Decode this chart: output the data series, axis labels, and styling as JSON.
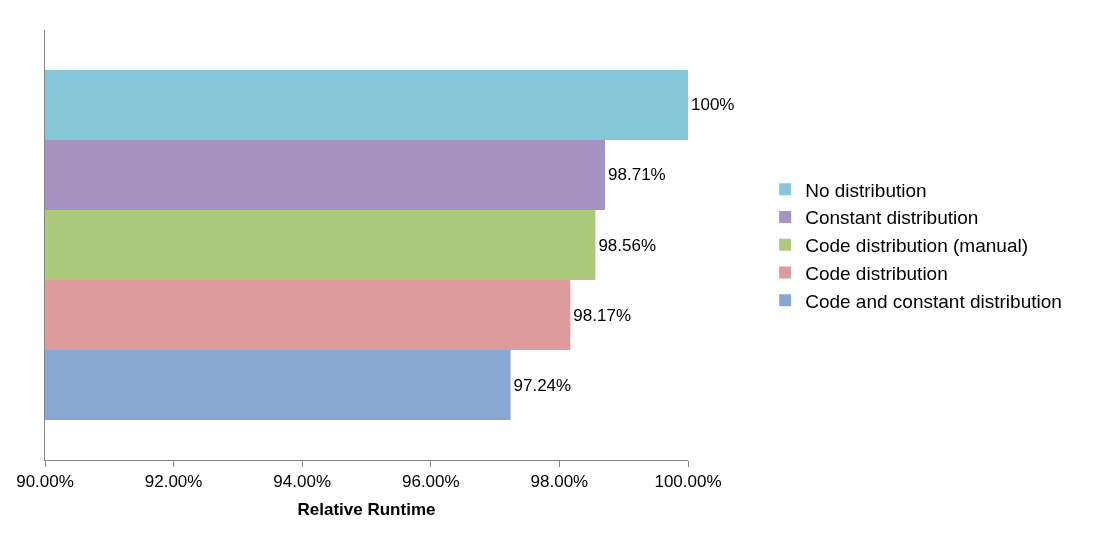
{
  "chart_data": {
    "type": "bar",
    "orientation": "horizontal",
    "categories": [
      null
    ],
    "series": [
      {
        "name": "No distribution",
        "color": "#86c6d9",
        "values": [
          100
        ],
        "value_labels": [
          "100%"
        ]
      },
      {
        "name": "Constant distribution",
        "color": "#a793c1",
        "values": [
          98.71
        ],
        "value_labels": [
          "98.71%"
        ]
      },
      {
        "name": "Code distribution (manual)",
        "color": "#adc97b",
        "values": [
          98.56
        ],
        "value_labels": [
          "98.56%"
        ]
      },
      {
        "name": "Code distribution",
        "color": "#dd9c9b",
        "values": [
          98.17
        ],
        "value_labels": [
          "98.17%"
        ]
      },
      {
        "name": "Code and constant distribution",
        "color": "#88a8d2",
        "values": [
          97.24
        ],
        "value_labels": [
          "97.24%"
        ]
      }
    ],
    "xlabel": "Relative Runtime",
    "xlim": [
      90,
      100
    ],
    "xticks": [
      {
        "value": 90,
        "label": "90.00%"
      },
      {
        "value": 92,
        "label": "92.00%"
      },
      {
        "value": 94,
        "label": "94.00%"
      },
      {
        "value": 96,
        "label": "96.00%"
      },
      {
        "value": 98,
        "label": "98.00%"
      },
      {
        "value": 100,
        "label": "100.00%"
      }
    ],
    "grid": false,
    "legend": "right"
  }
}
